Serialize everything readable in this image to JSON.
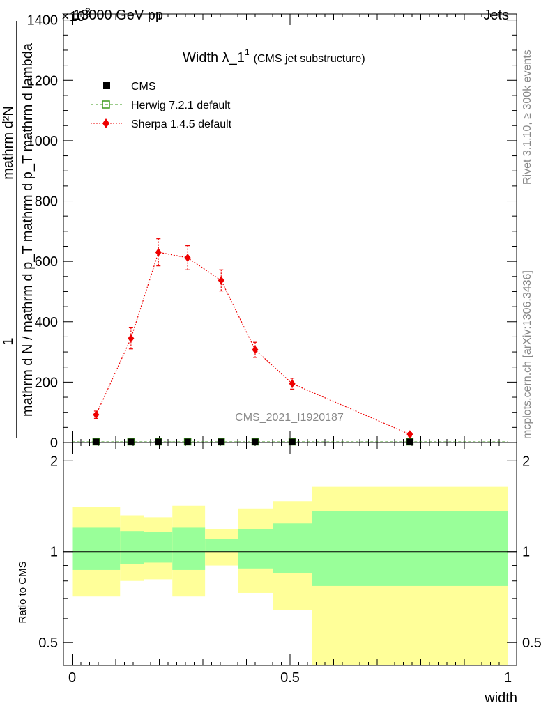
{
  "header": {
    "left": "13000 GeV pp",
    "right": "Jets"
  },
  "side_labels": {
    "rivet": "Rivet 3.1.10, ≥ 300k events",
    "mcplots": "mcplots.cern.ch [arXiv:1306.3436]"
  },
  "colors": {
    "cms": "#000000",
    "herwig": "#3a9a1a",
    "sherpa": "#ee0000",
    "band_green": "#99ff99",
    "band_yellow": "#ffff99"
  },
  "chart_data": {
    "type": "scatter",
    "title_main": "Width λ_1",
    "title_sup": "1",
    "title_sub": "(CMS jet substructure)",
    "analysis_id": "CMS_2021_I1920187",
    "main_ylabel_parts": [
      "1",
      "mathrm d N / mathrm d p_T mathrm d p_T mathrm d lambda",
      "mathrm d²N"
    ],
    "exponent_label": "×10",
    "exponent_sup": "3",
    "main_yticks": [
      0,
      200,
      400,
      600,
      800,
      1000,
      1200,
      1400
    ],
    "main_ytick_labels": [
      "0",
      "200",
      "400",
      "600",
      "800",
      "1000",
      "1200",
      "1400"
    ],
    "ratio_ylabel": "Ratio to CMS",
    "ratio_yticks": [
      0.5,
      1,
      2
    ],
    "ratio_ytick_labels": [
      "0.5",
      "1",
      "2"
    ],
    "xlabel": "width",
    "xticks": [
      0,
      0.5,
      1
    ],
    "xtick_labels": [
      "0",
      "0.5",
      "1"
    ],
    "xlim": [
      -0.02,
      1.02
    ],
    "main_ylim": [
      0,
      1420
    ],
    "ratio_ylim": [
      0.42,
      2.3
    ],
    "legend": [
      {
        "name": "CMS",
        "marker": "square"
      },
      {
        "name": "Herwig 7.2.1 default",
        "marker": "open-square"
      },
      {
        "name": "Sherpa 1.4.5 default",
        "marker": "diamond"
      }
    ],
    "bins": [
      {
        "x": 0.055,
        "lo": 0.0,
        "hi": 0.11
      },
      {
        "x": 0.135,
        "lo": 0.11,
        "hi": 0.165
      },
      {
        "x": 0.198,
        "lo": 0.165,
        "hi": 0.23
      },
      {
        "x": 0.265,
        "lo": 0.23,
        "hi": 0.305
      },
      {
        "x": 0.342,
        "lo": 0.305,
        "hi": 0.38
      },
      {
        "x": 0.42,
        "lo": 0.38,
        "hi": 0.46
      },
      {
        "x": 0.505,
        "lo": 0.46,
        "hi": 0.55
      },
      {
        "x": 0.775,
        "lo": 0.55,
        "hi": 1.0
      }
    ],
    "series": [
      {
        "name": "CMS",
        "values": [
          0,
          0,
          0,
          0,
          0,
          0,
          0,
          0
        ]
      },
      {
        "name": "Herwig 7.2.1 default",
        "values": [
          0,
          0,
          0,
          0,
          0,
          0,
          0,
          0
        ]
      },
      {
        "name": "Sherpa 1.4.5 default",
        "values": [
          92,
          345,
          630,
          612,
          537,
          307,
          195,
          27
        ],
        "errors": [
          12,
          35,
          45,
          40,
          35,
          25,
          18,
          6
        ]
      }
    ],
    "ratio_bands": {
      "green_lo": [
        0.87,
        0.91,
        0.92,
        0.87,
        1.0,
        0.88,
        0.85,
        0.77
      ],
      "green_hi": [
        1.2,
        1.17,
        1.16,
        1.2,
        1.1,
        1.19,
        1.24,
        1.36
      ],
      "yellow_lo": [
        0.71,
        0.8,
        0.81,
        0.71,
        0.9,
        0.73,
        0.64,
        0.42
      ],
      "yellow_hi": [
        1.41,
        1.32,
        1.3,
        1.42,
        1.19,
        1.39,
        1.47,
        1.64
      ]
    }
  }
}
